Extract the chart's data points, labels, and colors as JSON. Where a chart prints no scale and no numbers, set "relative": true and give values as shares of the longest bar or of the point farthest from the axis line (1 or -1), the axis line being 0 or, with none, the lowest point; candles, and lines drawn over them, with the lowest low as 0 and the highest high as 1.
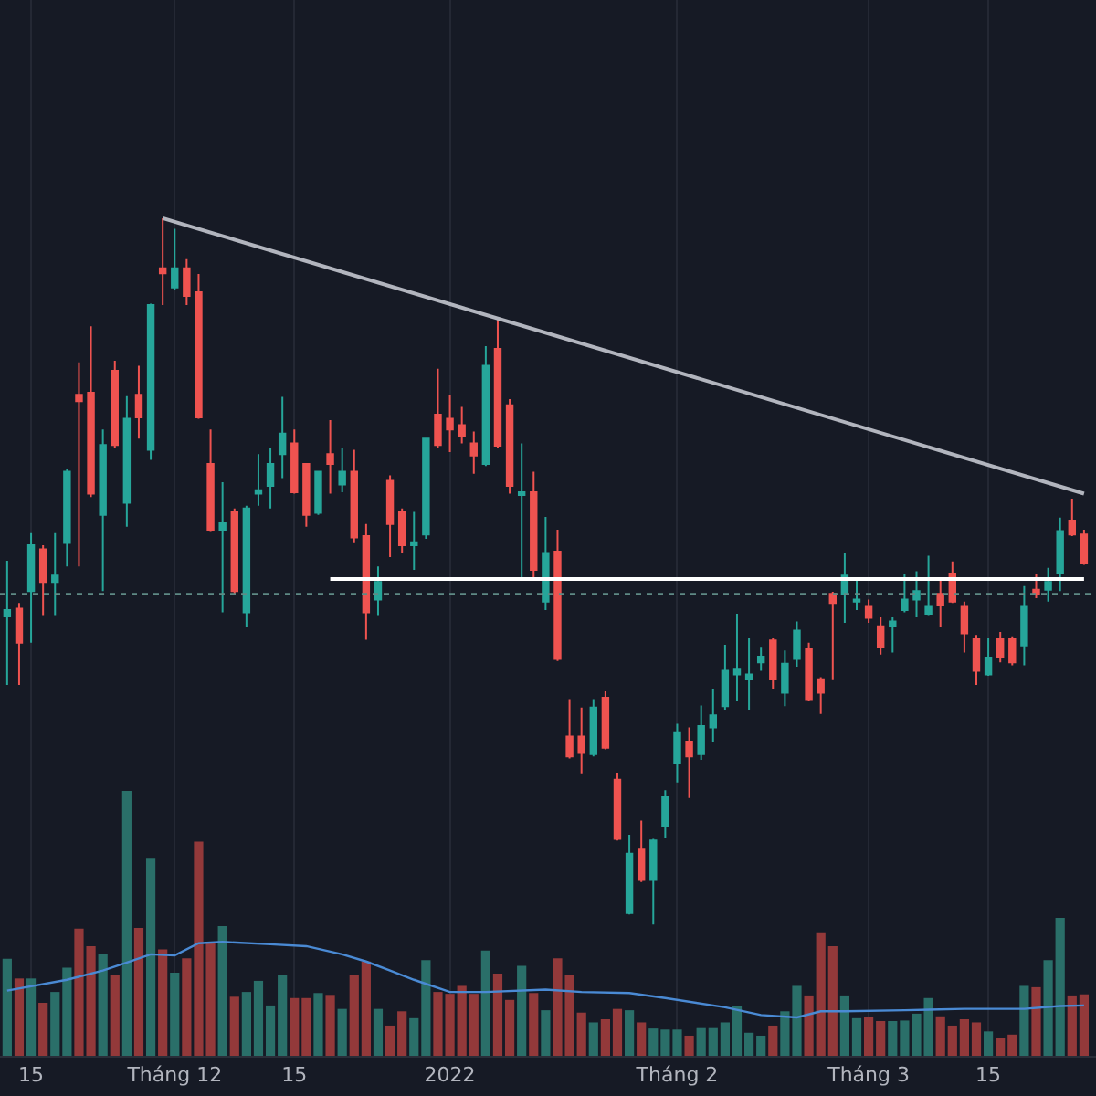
{
  "chart_data": [
    {
      "type": "candlestick",
      "relative": true,
      "categories": [
        null,
        null,
        null,
        null,
        null,
        null,
        null,
        null,
        null,
        null,
        null,
        null,
        null,
        null,
        null,
        null,
        null,
        null,
        null,
        null,
        null,
        null,
        null,
        null,
        null,
        null,
        null,
        null,
        null,
        null,
        null,
        null,
        null,
        null,
        null,
        null,
        null,
        null,
        null,
        null,
        null,
        null,
        null,
        null,
        null,
        null,
        null,
        null,
        null,
        null,
        null,
        null,
        null,
        null,
        null,
        null,
        null,
        null,
        null,
        null,
        null,
        null,
        null,
        null,
        null,
        null,
        null,
        null,
        null,
        null,
        null,
        null,
        null,
        null,
        null,
        null,
        null,
        null,
        null,
        null,
        null,
        null,
        null,
        null,
        null,
        null,
        null,
        null,
        null,
        null,
        null
      ],
      "ohlc": [
        [
          0.436,
          0.515,
          0.339,
          0.445
        ],
        [
          0.447,
          0.455,
          0.339,
          0.399
        ],
        [
          0.472,
          0.554,
          0.399,
          0.537
        ],
        [
          0.531,
          0.537,
          0.438,
          0.485
        ],
        [
          0.485,
          0.554,
          0.438,
          0.494
        ],
        [
          0.54,
          0.645,
          0.507,
          0.641
        ],
        [
          0.75,
          0.796,
          0.507,
          0.741
        ],
        [
          0.753,
          0.847,
          0.605,
          0.61
        ],
        [
          0.58,
          0.701,
          0.472,
          0.679
        ],
        [
          0.784,
          0.798,
          0.675,
          0.679
        ],
        [
          0.597,
          0.748,
          0.563,
          0.716
        ],
        [
          0.75,
          0.791,
          0.688,
          0.718
        ],
        [
          0.672,
          0.879,
          0.658,
          0.877
        ],
        [
          0.929,
          1,
          0.877,
          0.922
        ],
        [
          0.902,
          0.985,
          0.899,
          0.929
        ],
        [
          0.929,
          0.942,
          0.877,
          0.89
        ],
        [
          0.895,
          0.921,
          0.716,
          0.718
        ],
        [
          0.652,
          0.701,
          0.557,
          0.559
        ],
        [
          0.559,
          0.626,
          0.442,
          0.569
        ],
        [
          0.584,
          0.589,
          0.468,
          0.472
        ],
        [
          0.442,
          0.593,
          0.421,
          0.589
        ],
        [
          0.61,
          0.666,
          0.593,
          0.615
        ],
        [
          0.621,
          0.675,
          0.589,
          0.652
        ],
        [
          0.666,
          0.747,
          0.632,
          0.695
        ],
        [
          0.681,
          0.701,
          0.61,
          0.612
        ],
        [
          0.652,
          0.653,
          0.563,
          0.58
        ],
        [
          0.583,
          0.641,
          0.58,
          0.641
        ],
        [
          0.666,
          0.714,
          0.61,
          0.652
        ],
        [
          0.623,
          0.675,
          0.612,
          0.641
        ],
        [
          0.641,
          0.672,
          0.541,
          0.548
        ],
        [
          0.55,
          0.567,
          0.403,
          0.442
        ],
        [
          0.46,
          0.507,
          0.438,
          0.485
        ],
        [
          0.628,
          0.636,
          0.52,
          0.567
        ],
        [
          0.584,
          0.589,
          0.526,
          0.537
        ],
        [
          0.537,
          0.584,
          0.502,
          0.541
        ],
        [
          0.552,
          0.688,
          0.546,
          0.688
        ],
        [
          0.722,
          0.787,
          0.675,
          0.679
        ],
        [
          0.716,
          0.75,
          0.669,
          0.701
        ],
        [
          0.707,
          0.733,
          0.681,
          0.692
        ],
        [
          0.681,
          0.698,
          0.638,
          0.664
        ],
        [
          0.652,
          0.819,
          0.649,
          0.791
        ],
        [
          0.815,
          0.86,
          0.675,
          0.678
        ],
        [
          0.735,
          0.744,
          0.61,
          0.621
        ],
        [
          0.608,
          0.681,
          0.488,
          0.612
        ],
        [
          0.612,
          0.641,
          0.491,
          0.502
        ],
        [
          0.457,
          0.577,
          0.445,
          0.526
        ],
        [
          0.528,
          0.559,
          0.373,
          0.376
        ],
        [
          0.266,
          0.319,
          0.235,
          0.238
        ],
        [
          0.266,
          0.307,
          0.214,
          0.244
        ],
        [
          0.241,
          0.319,
          0.238,
          0.307
        ],
        [
          0.321,
          0.33,
          0.248,
          0.25
        ],
        [
          0.205,
          0.215,
          0.119,
          0.121
        ],
        [
          0.016,
          0.127,
          0.014,
          0.1
        ],
        [
          0.106,
          0.147,
          0.06,
          0.063
        ],
        [
          0.063,
          0.121,
          0,
          0.119
        ],
        [
          0.14,
          0.19,
          0.123,
          0.181
        ],
        [
          0.229,
          0.284,
          0.201,
          0.272
        ],
        [
          0.259,
          0.279,
          0.179,
          0.238
        ],
        [
          0.241,
          0.31,
          0.233,
          0.281
        ],
        [
          0.279,
          0.334,
          0.259,
          0.296
        ],
        [
          0.309,
          0.396,
          0.304,
          0.359
        ],
        [
          0.354,
          0.44,
          0.317,
          0.362
        ],
        [
          0.347,
          0.405,
          0.304,
          0.354
        ],
        [
          0.371,
          0.393,
          0.359,
          0.379
        ],
        [
          0.402,
          0.405,
          0.334,
          0.347
        ],
        [
          0.328,
          0.388,
          0.309,
          0.369
        ],
        [
          0.376,
          0.429,
          0.365,
          0.416
        ],
        [
          0.39,
          0.399,
          0.317,
          0.319
        ],
        [
          0.347,
          0.35,
          0.298,
          0.328
        ],
        [
          0.468,
          0.471,
          0.347,
          0.455
        ],
        [
          0.468,
          0.526,
          0.427,
          0.494
        ],
        [
          0.457,
          0.49,
          0.445,
          0.46
        ],
        [
          0.451,
          0.46,
          0.427,
          0.434
        ],
        [
          0.422,
          0.436,
          0.382,
          0.393
        ],
        [
          0.422,
          0.436,
          0.385,
          0.429
        ],
        [
          0.445,
          0.497,
          0.442,
          0.46
        ],
        [
          0.46,
          0.5,
          0.436,
          0.472
        ],
        [
          0.44,
          0.522,
          0.438,
          0.451
        ],
        [
          0.468,
          0.491,
          0.421,
          0.453
        ],
        [
          0.497,
          0.514,
          0.455,
          0.457
        ],
        [
          0.451,
          0.457,
          0.385,
          0.412
        ],
        [
          0.405,
          0.41,
          0.339,
          0.359
        ],
        [
          0.354,
          0.405,
          0.352,
          0.378
        ],
        [
          0.405,
          0.414,
          0.371,
          0.379
        ],
        [
          0.405,
          0.408,
          0.367,
          0.371
        ],
        [
          0.395,
          0.479,
          0.367,
          0.451
        ],
        [
          0.474,
          0.497,
          0.462,
          0.468
        ],
        [
          0.474,
          0.505,
          0.457,
          0.485
        ],
        [
          0.497,
          0.576,
          0.472,
          0.557
        ],
        [
          0.572,
          0.603,
          0.55,
          0.552
        ],
        [
          0.552,
          0.559,
          0.509,
          0.511
        ]
      ],
      "series": [
        {
          "type": "line",
          "color": "#b2b5be",
          "values": [
            null,
            null,
            null,
            null,
            null,
            null,
            null,
            null,
            null,
            null,
            null,
            null,
            null,
            1,
            null,
            null,
            null,
            null,
            null,
            null,
            null,
            null,
            null,
            null,
            null,
            null,
            null,
            null,
            null,
            null,
            null,
            null,
            null,
            null,
            null,
            null,
            null,
            null,
            null,
            null,
            null,
            null,
            null,
            null,
            null,
            null,
            null,
            null,
            null,
            null,
            null,
            null,
            null,
            null,
            null,
            null,
            null,
            null,
            null,
            null,
            null,
            null,
            null,
            null,
            null,
            null,
            null,
            null,
            null,
            null,
            null,
            null,
            null,
            null,
            null,
            null,
            null,
            null,
            null,
            null,
            null,
            null,
            null,
            null,
            null,
            null,
            null,
            null,
            null,
            null,
            0.61
          ]
        },
        {
          "type": "line",
          "color": "#ffffff",
          "values": [
            null,
            null,
            null,
            null,
            null,
            null,
            null,
            null,
            null,
            null,
            null,
            null,
            null,
            null,
            null,
            null,
            null,
            null,
            null,
            null,
            null,
            null,
            null,
            null,
            null,
            null,
            null,
            0.489,
            null,
            null,
            null,
            null,
            null,
            null,
            null,
            null,
            null,
            null,
            null,
            null,
            null,
            null,
            null,
            null,
            null,
            null,
            null,
            null,
            null,
            null,
            null,
            null,
            null,
            null,
            null,
            null,
            null,
            null,
            null,
            null,
            null,
            null,
            null,
            null,
            null,
            null,
            null,
            null,
            null,
            null,
            null,
            null,
            null,
            null,
            null,
            null,
            null,
            null,
            null,
            null,
            null,
            null,
            null,
            null,
            null,
            null,
            null,
            null,
            null,
            null,
            0.489
          ]
        }
      ],
      "ref_lines": [
        {
          "axis": "y",
          "value": 0.468,
          "color": "#5f8a85",
          "line_style": "dotted"
        }
      ]
    },
    {
      "type": "bar",
      "relative": true,
      "grid": "x",
      "tick_labels": "x",
      "categories": [
        null,
        null,
        "15",
        null,
        null,
        null,
        null,
        null,
        null,
        null,
        null,
        null,
        null,
        null,
        "Tháng 12",
        null,
        null,
        null,
        null,
        null,
        null,
        null,
        null,
        null,
        "15",
        null,
        null,
        null,
        null,
        null,
        null,
        null,
        null,
        null,
        null,
        null,
        null,
        "2022",
        null,
        null,
        null,
        null,
        null,
        null,
        null,
        null,
        null,
        null,
        null,
        null,
        null,
        null,
        null,
        null,
        null,
        null,
        "Tháng 2",
        null,
        null,
        null,
        null,
        null,
        null,
        null,
        null,
        null,
        null,
        null,
        null,
        null,
        null,
        null,
        "Tháng 3",
        null,
        null,
        null,
        null,
        null,
        null,
        null,
        null,
        null,
        "15",
        null,
        null,
        null,
        null,
        null,
        null,
        null,
        null
      ],
      "colors": [
        "#2a6f69",
        "#93393a",
        "#2a6f69",
        "#93393a",
        "#2a6f69",
        "#2a6f69",
        "#93393a",
        "#93393a",
        "#2a6f69",
        "#93393a",
        "#2a6f69",
        "#93393a",
        "#2a6f69",
        "#93393a",
        "#2a6f69",
        "#93393a",
        "#93393a",
        "#93393a",
        "#2a6f69",
        "#93393a",
        "#2a6f69",
        "#2a6f69",
        "#2a6f69",
        "#2a6f69",
        "#93393a",
        "#93393a",
        "#2a6f69",
        "#93393a",
        "#2a6f69",
        "#93393a",
        "#93393a",
        "#2a6f69",
        "#93393a",
        "#93393a",
        "#2a6f69",
        "#2a6f69",
        "#93393a",
        "#93393a",
        "#93393a",
        "#93393a",
        "#2a6f69",
        "#93393a",
        "#93393a",
        "#2a6f69",
        "#93393a",
        "#2a6f69",
        "#93393a",
        "#93393a",
        "#93393a",
        "#2a6f69",
        "#93393a",
        "#93393a",
        "#2a6f69",
        "#93393a",
        "#2a6f69",
        "#2a6f69",
        "#2a6f69",
        "#93393a",
        "#2a6f69",
        "#2a6f69",
        "#2a6f69",
        "#2a6f69",
        "#2a6f69",
        "#2a6f69",
        "#93393a",
        "#2a6f69",
        "#2a6f69",
        "#93393a",
        "#93393a",
        "#93393a",
        "#2a6f69",
        "#2a6f69",
        "#93393a",
        "#93393a",
        "#2a6f69",
        "#2a6f69",
        "#2a6f69",
        "#2a6f69",
        "#93393a",
        "#93393a",
        "#93393a",
        "#93393a",
        "#2a6f69",
        "#93393a",
        "#93393a",
        "#2a6f69",
        "#93393a",
        "#2a6f69",
        "#2a6f69",
        "#93393a",
        "#93393a"
      ],
      "values": [
        0.366,
        0.292,
        0.292,
        0.2,
        0.241,
        0.333,
        0.48,
        0.414,
        0.383,
        0.306,
        1,
        0.483,
        0.747,
        0.402,
        0.314,
        0.368,
        0.809,
        0.425,
        0.49,
        0.223,
        0.241,
        0.283,
        0.19,
        0.303,
        0.218,
        0.218,
        0.237,
        0.23,
        0.177,
        0.303,
        0.356,
        0.177,
        0.114,
        0.168,
        0.142,
        0.361,
        0.241,
        0.234,
        0.264,
        0.234,
        0.397,
        0.31,
        0.211,
        0.34,
        0.237,
        0.172,
        0.368,
        0.306,
        0.163,
        0.126,
        0.138,
        0.177,
        0.172,
        0.126,
        0.103,
        0.099,
        0.099,
        0.076,
        0.108,
        0.108,
        0.126,
        0.188,
        0.087,
        0.076,
        0.114,
        0.168,
        0.264,
        0.228,
        0.466,
        0.414,
        0.228,
        0.142,
        0.145,
        0.131,
        0.131,
        0.133,
        0.159,
        0.218,
        0.149,
        0.114,
        0.138,
        0.126,
        0.092,
        0.066,
        0.08,
        0.264,
        0.259,
        0.361,
        0.521,
        0.228,
        0.232
      ],
      "series": [
        {
          "type": "line",
          "color": "#4a8ad4",
          "values": [
            0.246,
            null,
            null,
            null,
            null,
            0.287,
            null,
            null,
            0.322,
            null,
            0.352,
            null,
            0.383,
            null,
            0.379,
            null,
            0.425,
            null,
            0.43,
            null,
            null,
            null,
            0.421,
            null,
            null,
            0.414,
            null,
            null,
            0.383,
            null,
            0.356,
            null,
            0.322,
            null,
            0.287,
            null,
            null,
            0.241,
            null,
            null,
            0.241,
            null,
            null,
            null,
            null,
            0.25,
            null,
            null,
            0.241,
            null,
            null,
            null,
            0.237,
            null,
            null,
            0.218,
            null,
            null,
            null,
            null,
            0.183,
            null,
            null,
            0.154,
            null,
            null,
            0.145,
            null,
            0.168,
            null,
            0.168,
            null,
            null,
            null,
            null,
            0.172,
            null,
            null,
            null,
            null,
            0.177,
            null,
            null,
            null,
            null,
            0.177,
            null,
            null,
            0.188,
            null,
            0.19
          ]
        }
      ]
    }
  ]
}
